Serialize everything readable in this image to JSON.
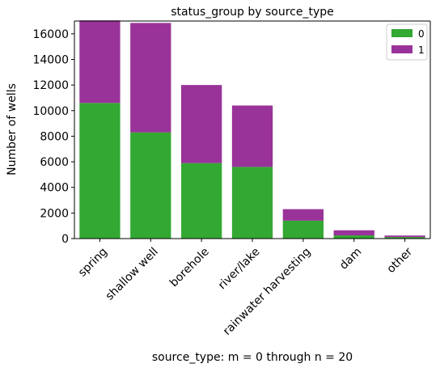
{
  "chart_data": {
    "type": "bar",
    "stacked": true,
    "title": "status_group by source_type",
    "xlabel": "source_type: m = 0 through n = 20",
    "ylabel": "Number of wells",
    "categories": [
      "spring",
      "shallow well",
      "borehole",
      "river/lake",
      "rainwater harvesting",
      "dam",
      "other"
    ],
    "series": [
      {
        "name": "0",
        "color": "#33a833",
        "values": [
          10600,
          8300,
          5900,
          5600,
          1400,
          250,
          120
        ]
      },
      {
        "name": "1",
        "color": "#993399",
        "values": [
          6450,
          8550,
          6100,
          4800,
          900,
          400,
          120
        ]
      }
    ],
    "ylim": [
      0,
      17000
    ],
    "yticks": [
      0,
      2000,
      4000,
      6000,
      8000,
      10000,
      12000,
      14000,
      16000
    ],
    "grid": false,
    "legend_position": "top-right"
  }
}
